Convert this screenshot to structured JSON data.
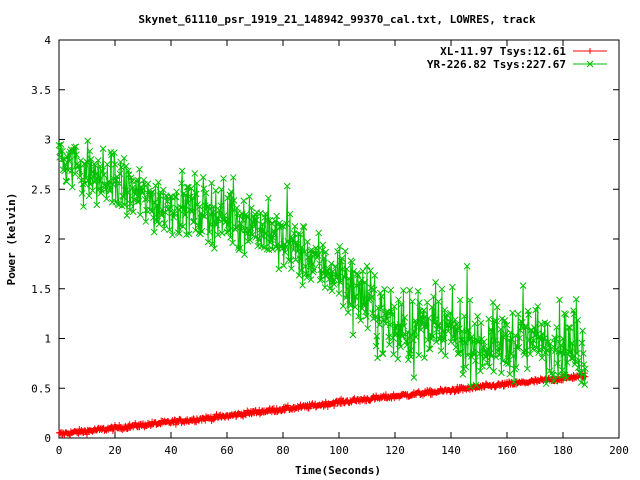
{
  "chart_data": {
    "type": "line",
    "title": "Skynet_61110_psr_1919_21_148942_99370_cal.txt, LOWRES, track",
    "xlabel": "Time(Seconds)",
    "ylabel": "Power (kelvin)",
    "xlim": [
      0,
      200
    ],
    "ylim": [
      0,
      4
    ],
    "xticks": [
      "0",
      "20",
      "40",
      "60",
      "80",
      "100",
      "120",
      "140",
      "160",
      "180",
      "200"
    ],
    "yticks": [
      "0",
      "0.5",
      "1",
      "1.5",
      "2",
      "2.5",
      "3",
      "3.5",
      "4"
    ],
    "legend_position": "top-right",
    "series": [
      {
        "name": "XL-11.97 Tsys:12.61",
        "color": "#ff0000",
        "marker": "plus",
        "x": [
          0,
          10,
          20,
          30,
          40,
          50,
          60,
          70,
          80,
          90,
          100,
          110,
          120,
          130,
          140,
          150,
          160,
          170,
          180,
          188
        ],
        "y": [
          0.04,
          0.07,
          0.1,
          0.13,
          0.16,
          0.19,
          0.22,
          0.26,
          0.29,
          0.32,
          0.36,
          0.39,
          0.42,
          0.45,
          0.48,
          0.51,
          0.54,
          0.57,
          0.6,
          0.63
        ]
      },
      {
        "name": "YR-226.82 Tsys:227.67",
        "color": "#00c000",
        "marker": "cross",
        "x": [
          0,
          10,
          20,
          30,
          40,
          50,
          60,
          70,
          80,
          90,
          100,
          110,
          120,
          130,
          140,
          150,
          160,
          170,
          180,
          188
        ],
        "y": [
          2.85,
          2.65,
          2.55,
          2.4,
          2.35,
          2.3,
          2.25,
          2.15,
          1.95,
          1.8,
          1.65,
          1.35,
          1.1,
          1.1,
          1.05,
          0.95,
          0.95,
          1.0,
          0.95,
          0.85
        ]
      }
    ]
  }
}
